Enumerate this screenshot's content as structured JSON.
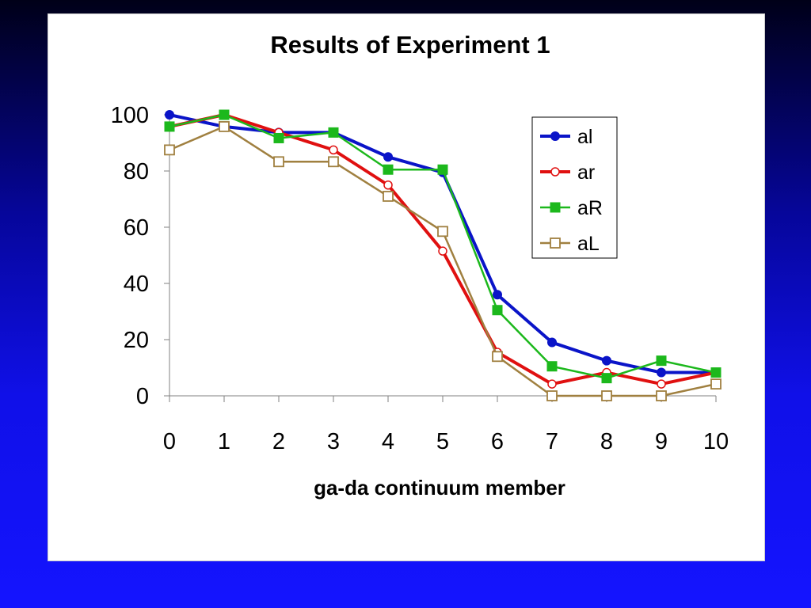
{
  "chart_data": {
    "type": "line",
    "title": "Results of Experiment 1",
    "xlabel": "ga-da continuum member",
    "ylabel": "",
    "x": [
      0,
      1,
      2,
      3,
      4,
      5,
      6,
      7,
      8,
      9,
      10
    ],
    "x_tick_labels": [
      "0",
      "1",
      "2",
      "3",
      "4",
      "5",
      "6",
      "7",
      "8",
      "9",
      "10"
    ],
    "y_tick_labels": [
      "0",
      "20",
      "40",
      "60",
      "80",
      "100"
    ],
    "y_ticks": [
      0,
      20,
      40,
      60,
      80,
      100
    ],
    "ylim": [
      0,
      100
    ],
    "grid": false,
    "legend_position": "top-right",
    "series": [
      {
        "name": "al",
        "values": [
          100,
          95.8,
          93.7,
          93.7,
          85,
          79.5,
          36,
          19,
          12.5,
          8.3,
          8.3
        ],
        "color": "#0a14c8",
        "marker": "circle-filled"
      },
      {
        "name": "ar",
        "values": [
          95.8,
          100,
          93.7,
          87.5,
          75,
          51.5,
          15.5,
          4.2,
          8.3,
          4.2,
          8.3
        ],
        "color": "#e01010",
        "marker": "circle-open"
      },
      {
        "name": "aR",
        "values": [
          95.8,
          100,
          91.7,
          93.7,
          80.5,
          80.5,
          30.5,
          10.5,
          6.3,
          12.5,
          8.3
        ],
        "color": "#1cb81c",
        "marker": "square-filled"
      },
      {
        "name": "aL",
        "values": [
          87.5,
          95.8,
          83.3,
          83.3,
          71,
          58.5,
          14,
          0,
          0,
          0,
          4.2
        ],
        "color": "#a08040",
        "marker": "square-open"
      }
    ]
  }
}
